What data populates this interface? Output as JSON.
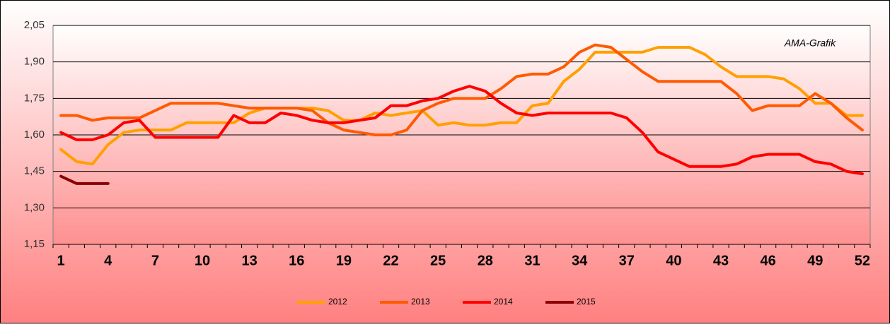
{
  "chart_data": {
    "type": "line",
    "annotation": "AMA-Grafik",
    "categories": [
      "1",
      null,
      null,
      "4",
      null,
      null,
      "7",
      null,
      null,
      "10",
      null,
      null,
      "13",
      null,
      null,
      "16",
      null,
      null,
      "19",
      null,
      null,
      "22",
      null,
      null,
      "25",
      null,
      null,
      "28",
      null,
      null,
      "31",
      null,
      null,
      "34",
      null,
      null,
      "37",
      null,
      null,
      "40",
      null,
      null,
      "43",
      null,
      null,
      "46",
      null,
      null,
      "49",
      null,
      null,
      "52"
    ],
    "ylim": [
      1.15,
      2.05
    ],
    "yticks": [
      {
        "value": 1.15,
        "label": "1,15"
      },
      {
        "value": 1.3,
        "label": "1,30"
      },
      {
        "value": 1.45,
        "label": "1,45"
      },
      {
        "value": 1.6,
        "label": "1,60"
      },
      {
        "value": 1.75,
        "label": "1,75"
      },
      {
        "value": 1.9,
        "label": "1,90"
      },
      {
        "value": 2.05,
        "label": "2,05"
      }
    ],
    "grid": true,
    "legend": "bottom",
    "series": [
      {
        "name": "2012",
        "color": "#ffa000",
        "values": [
          1.54,
          1.49,
          1.48,
          1.56,
          1.61,
          1.62,
          1.62,
          1.62,
          1.65,
          1.65,
          1.65,
          1.65,
          1.69,
          1.71,
          1.71,
          1.71,
          1.71,
          1.7,
          1.66,
          1.66,
          1.69,
          1.68,
          1.69,
          1.7,
          1.64,
          1.65,
          1.64,
          1.64,
          1.65,
          1.65,
          1.72,
          1.73,
          1.82,
          1.87,
          1.94,
          1.94,
          1.94,
          1.94,
          1.96,
          1.96,
          1.96,
          1.93,
          1.88,
          1.84,
          1.84,
          1.84,
          1.83,
          1.79,
          1.73,
          1.73,
          1.68,
          1.68
        ]
      },
      {
        "name": "2013",
        "color": "#ff5a00",
        "values": [
          1.68,
          1.68,
          1.66,
          1.67,
          1.67,
          1.67,
          1.7,
          1.73,
          1.73,
          1.73,
          1.73,
          1.72,
          1.71,
          1.71,
          1.71,
          1.71,
          1.7,
          1.65,
          1.62,
          1.61,
          1.6,
          1.6,
          1.62,
          1.7,
          1.73,
          1.75,
          1.75,
          1.75,
          1.79,
          1.84,
          1.85,
          1.85,
          1.88,
          1.94,
          1.97,
          1.96,
          1.91,
          1.86,
          1.82,
          1.82,
          1.82,
          1.82,
          1.82,
          1.77,
          1.7,
          1.72,
          1.72,
          1.72,
          1.77,
          1.73,
          1.67,
          1.62
        ]
      },
      {
        "name": "2014",
        "color": "#ff0000",
        "values": [
          1.61,
          1.58,
          1.58,
          1.6,
          1.65,
          1.66,
          1.59,
          1.59,
          1.59,
          1.59,
          1.59,
          1.68,
          1.65,
          1.65,
          1.69,
          1.68,
          1.66,
          1.65,
          1.65,
          1.66,
          1.67,
          1.72,
          1.72,
          1.74,
          1.75,
          1.78,
          1.8,
          1.78,
          1.73,
          1.69,
          1.68,
          1.69,
          1.69,
          1.69,
          1.69,
          1.69,
          1.67,
          1.61,
          1.53,
          1.5,
          1.47,
          1.47,
          1.47,
          1.48,
          1.51,
          1.52,
          1.52,
          1.52,
          1.49,
          1.48,
          1.45,
          1.44
        ]
      },
      {
        "name": "2015",
        "color": "#8b0000",
        "values": [
          1.43,
          1.4,
          1.4,
          1.4,
          null,
          null,
          null,
          null,
          null,
          null,
          null,
          null,
          null,
          null,
          null,
          null,
          null,
          null,
          null,
          null,
          null,
          null,
          null,
          null,
          null,
          null,
          null,
          null,
          null,
          null,
          null,
          null,
          null,
          null,
          null,
          null,
          null,
          null,
          null,
          null,
          null,
          null,
          null,
          null,
          null,
          null,
          null,
          null,
          null,
          null,
          null,
          null
        ]
      }
    ]
  }
}
